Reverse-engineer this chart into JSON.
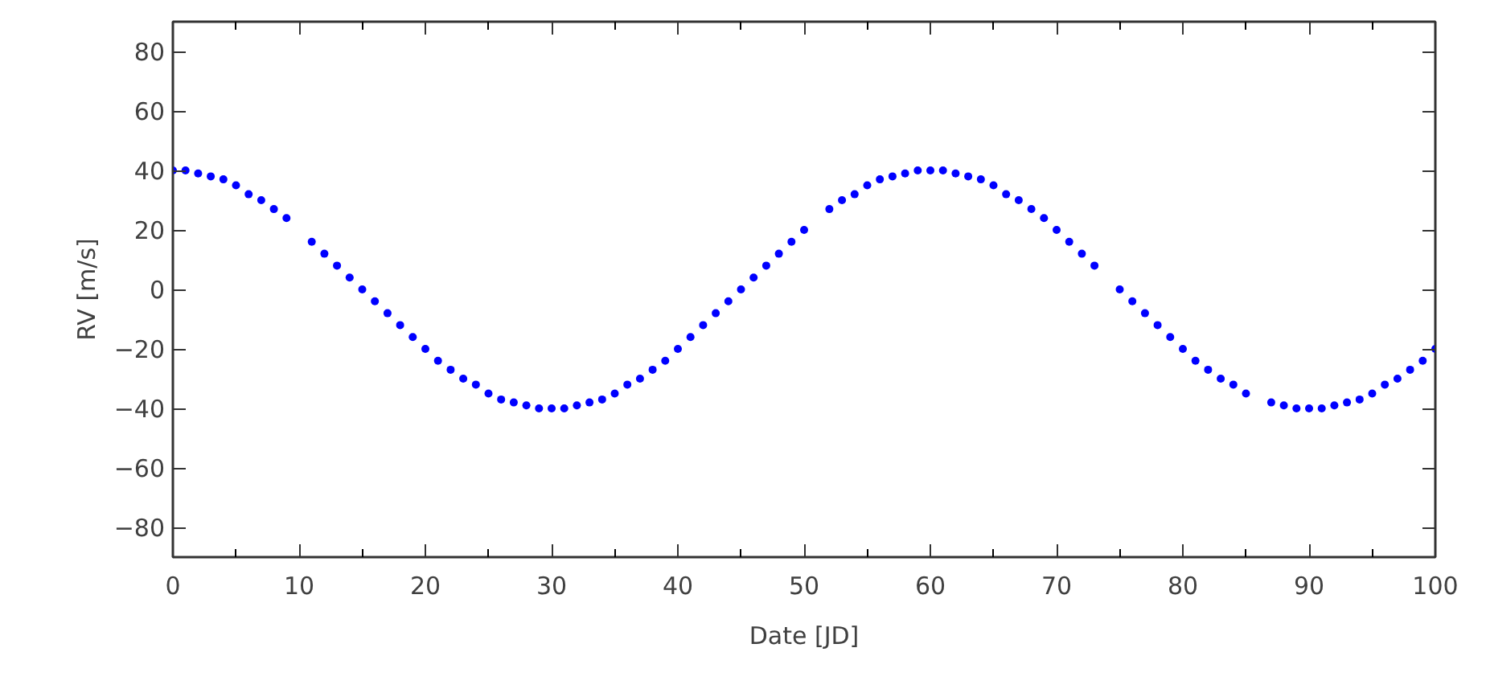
{
  "chart_data": {
    "type": "scatter",
    "xlabel": "Date [JD]",
    "ylabel": "RV [m/s]",
    "x": [
      0,
      1,
      2,
      3,
      4,
      5,
      6,
      7,
      8,
      9,
      11,
      12,
      13,
      14,
      15,
      16,
      17,
      18,
      19,
      20,
      21,
      22,
      23,
      24,
      25,
      26,
      27,
      28,
      29,
      30,
      31,
      32,
      33,
      34,
      35,
      36,
      37,
      38,
      39,
      40,
      41,
      42,
      43,
      44,
      45,
      46,
      47,
      48,
      49,
      50,
      52,
      53,
      54,
      55,
      56,
      57,
      58,
      59,
      60,
      61,
      62,
      63,
      64,
      65,
      66,
      67,
      68,
      69,
      70,
      71,
      72,
      73,
      75,
      76,
      77,
      78,
      79,
      80,
      81,
      82,
      83,
      84,
      85,
      87,
      88,
      89,
      90,
      91,
      92,
      93,
      94,
      95,
      96,
      97,
      98,
      99,
      100
    ],
    "values": [
      40,
      40,
      39,
      38,
      37,
      35,
      32,
      30,
      27,
      24,
      16,
      12,
      8,
      4,
      0,
      -4,
      -8,
      -12,
      -16,
      -20,
      -24,
      -27,
      -30,
      -32,
      -35,
      -37,
      -38,
      -39,
      -40,
      -40,
      -40,
      -39,
      -38,
      -37,
      -35,
      -32,
      -30,
      -27,
      -24,
      -20,
      -16,
      -12,
      -8,
      -4,
      0,
      4,
      8,
      12,
      16,
      20,
      27,
      30,
      32,
      35,
      37,
      38,
      39,
      40,
      40,
      40,
      39,
      38,
      37,
      35,
      32,
      30,
      27,
      24,
      20,
      16,
      12,
      8,
      0,
      -4,
      -8,
      -12,
      -16,
      -20,
      -24,
      -27,
      -30,
      -32,
      -35,
      -38,
      -39,
      -40,
      -40,
      -40,
      -39,
      -38,
      -37,
      -35,
      -32,
      -30,
      -27,
      -24,
      -20
    ],
    "color": "#0000ff",
    "marker": "circle",
    "xlim": [
      0,
      100
    ],
    "ylim": [
      -90,
      90
    ],
    "xticks": [
      0,
      10,
      20,
      30,
      40,
      50,
      60,
      70,
      80,
      90,
      100
    ],
    "yticks": [
      -80,
      -60,
      -40,
      -20,
      0,
      20,
      40,
      60,
      80
    ]
  }
}
